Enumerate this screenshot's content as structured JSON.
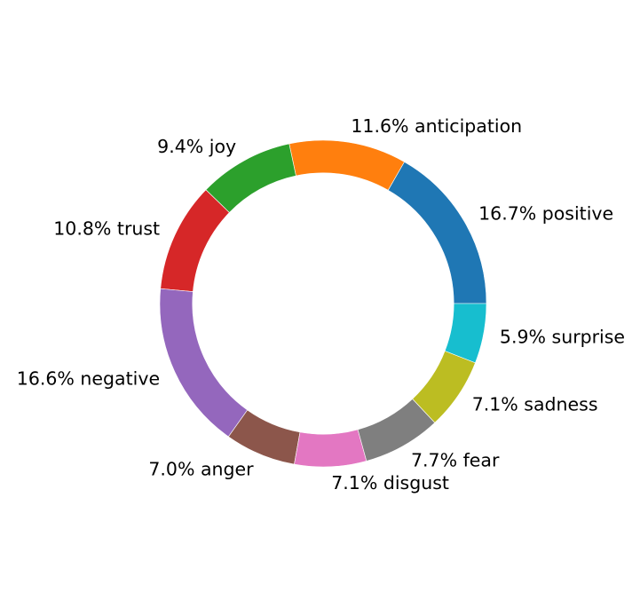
{
  "chart_data": {
    "type": "donut",
    "title": "",
    "slices": [
      {
        "label": "positive",
        "value": 16.7,
        "display": "16.7% positive",
        "color": "#1f77b4"
      },
      {
        "label": "anticipation",
        "value": 11.6,
        "display": "11.6% anticipation",
        "color": "#ff7f0e"
      },
      {
        "label": "joy",
        "value": 9.4,
        "display": "9.4% joy",
        "color": "#2ca02c"
      },
      {
        "label": "trust",
        "value": 10.8,
        "display": "10.8% trust",
        "color": "#d62728"
      },
      {
        "label": "negative",
        "value": 16.6,
        "display": "16.6% negative",
        "color": "#9467bd"
      },
      {
        "label": "anger",
        "value": 7.0,
        "display": "7.0% anger",
        "color": "#8c564b"
      },
      {
        "label": "disgust",
        "value": 7.1,
        "display": "7.1% disgust",
        "color": "#e377c2"
      },
      {
        "label": "fear",
        "value": 7.7,
        "display": "7.7% fear",
        "color": "#7f7f7f"
      },
      {
        "label": "sadness",
        "value": 7.1,
        "display": "7.1% sadness",
        "color": "#bcbd22"
      },
      {
        "label": "surprise",
        "value": 5.9,
        "display": "5.9% surprise",
        "color": "#17becf"
      }
    ],
    "start_angle_deg": 0,
    "direction": "counterclockwise",
    "ring_width_fraction": 0.2
  }
}
